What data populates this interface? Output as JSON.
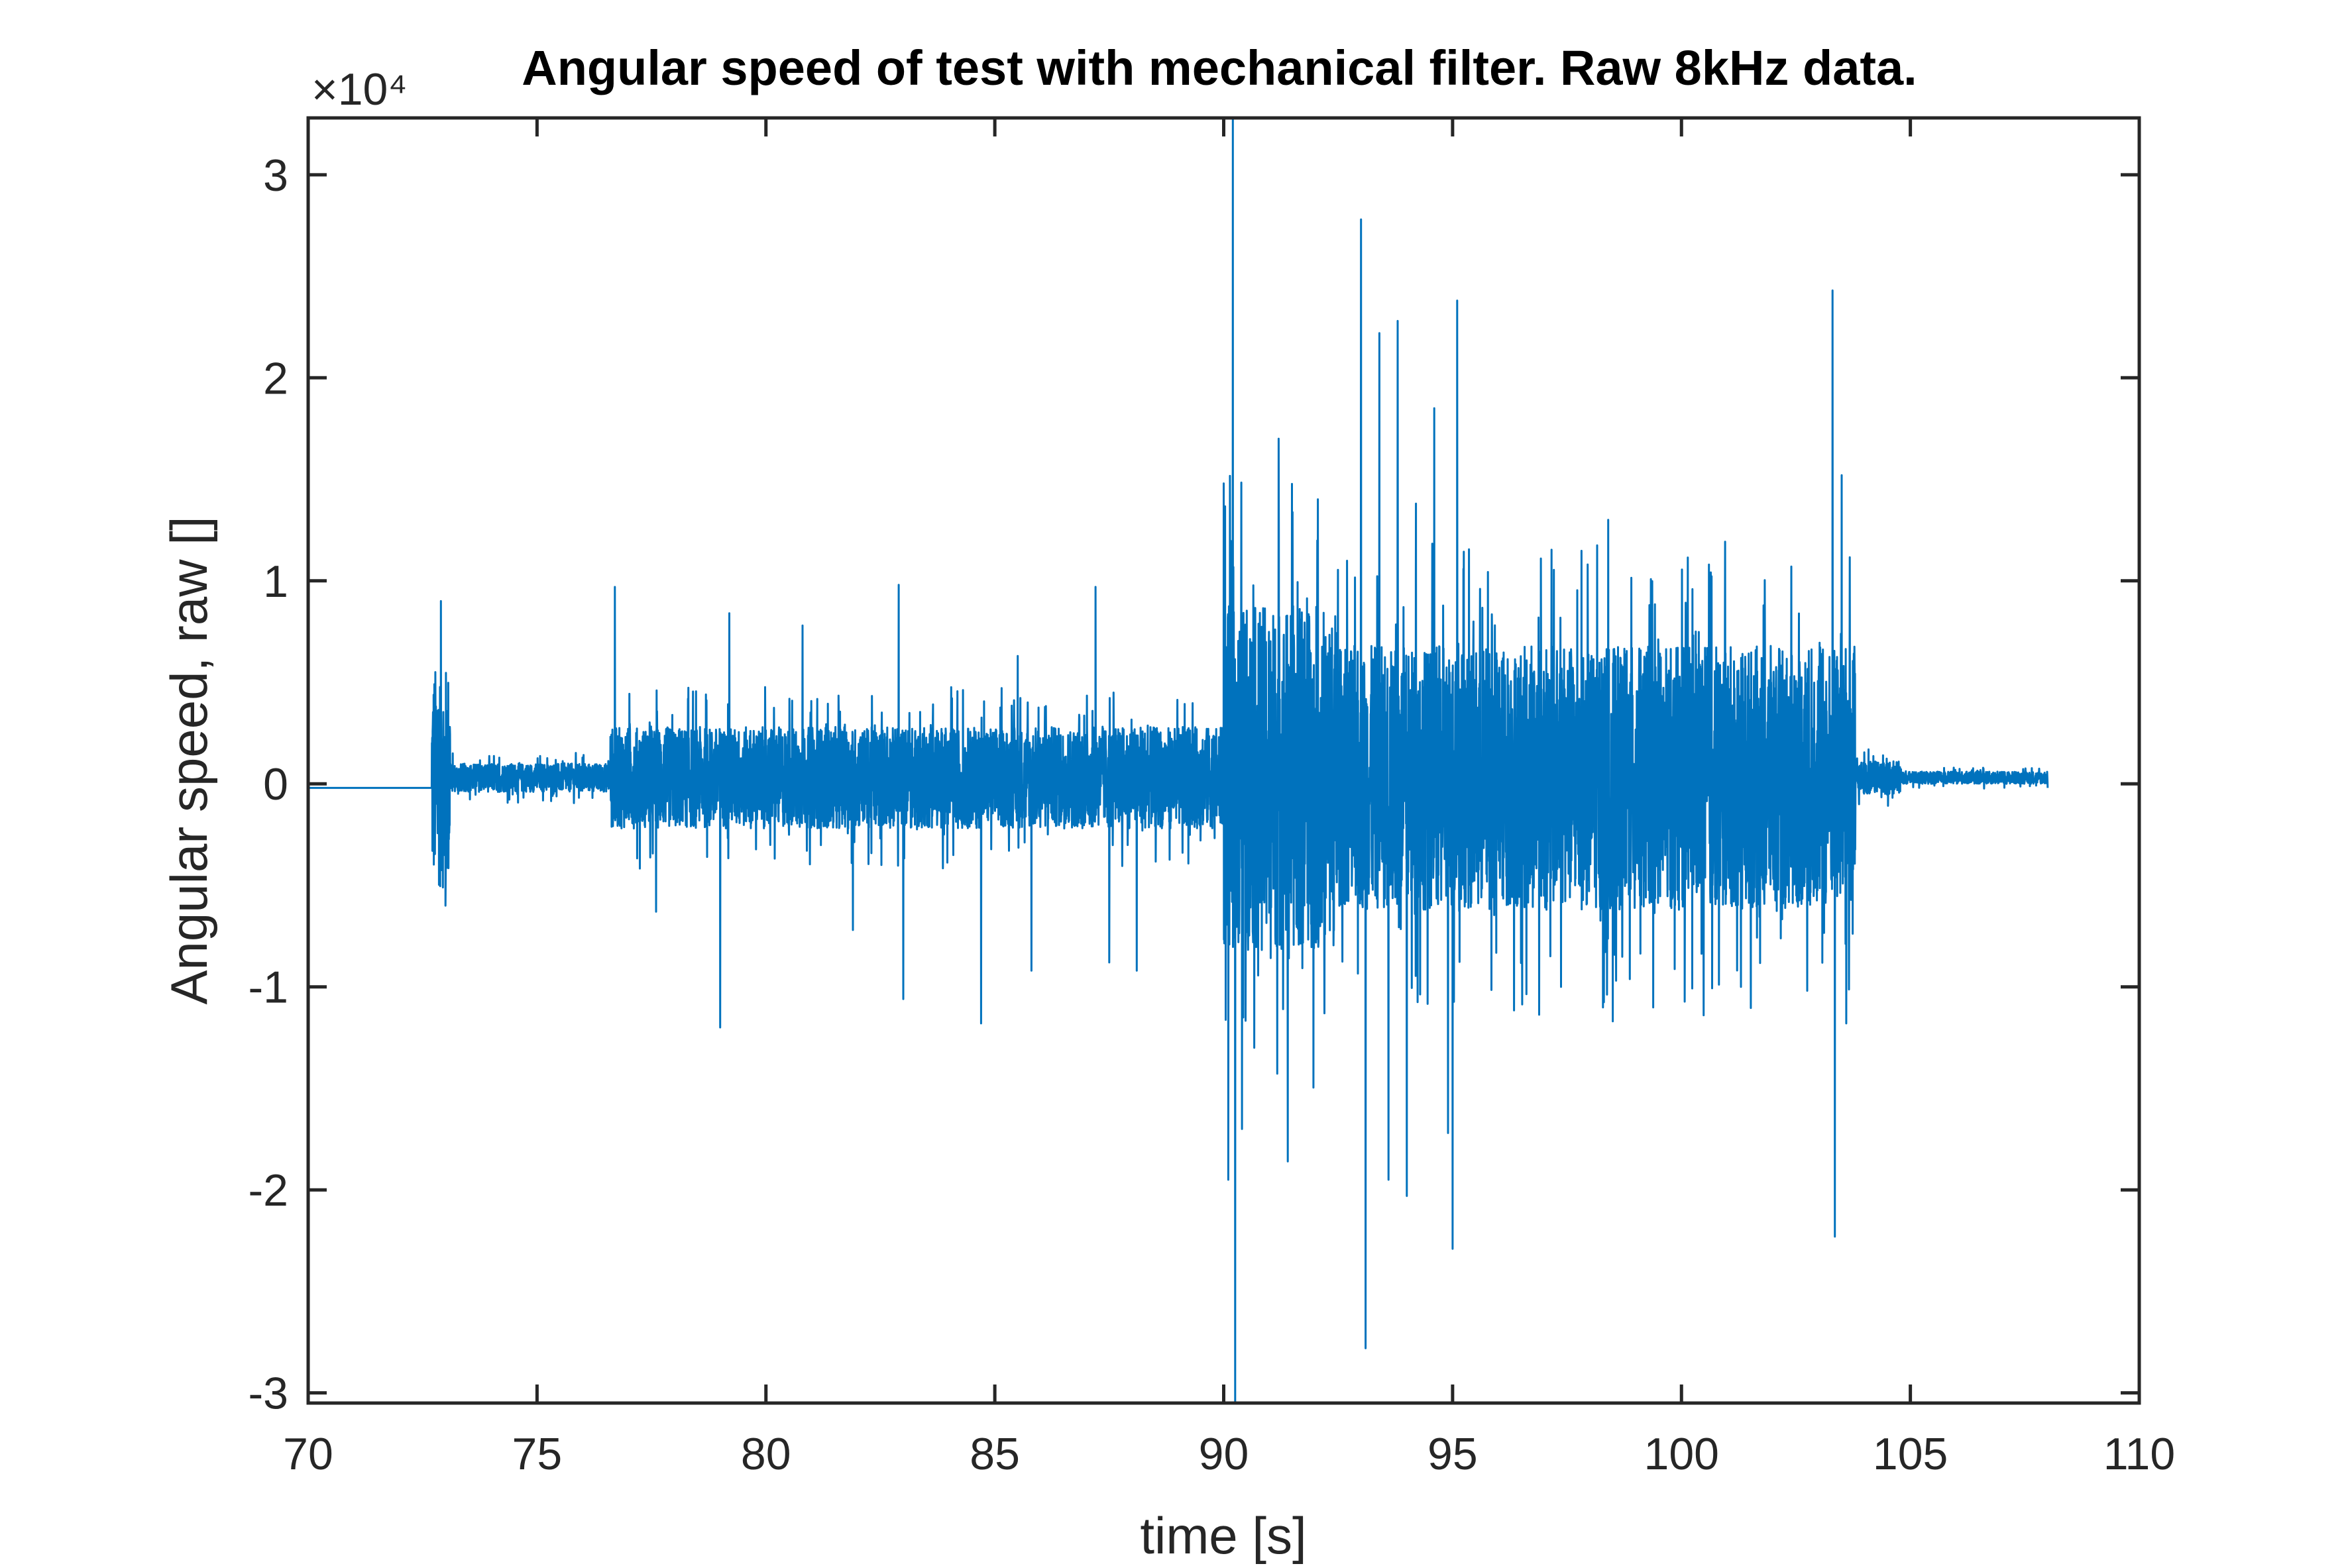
{
  "chart_data": {
    "type": "line",
    "title": "Angular speed of test with mechanical filter. Raw 8kHz data.",
    "xlabel": "time [s]",
    "ylabel": "Angular speed, raw []",
    "y_exponent_label": "×10⁴",
    "y_exponent": 4,
    "xlim": [
      70,
      110
    ],
    "ylim": [
      -3.05,
      3.28
    ],
    "x_ticks": [
      70,
      75,
      80,
      85,
      90,
      95,
      100,
      105,
      110
    ],
    "x_tick_labels": [
      "70",
      "75",
      "80",
      "85",
      "90",
      "95",
      "100",
      "105",
      "110"
    ],
    "y_ticks": [
      3,
      2,
      1,
      0,
      -1,
      -2,
      -3
    ],
    "y_tick_labels": [
      "3",
      "2",
      "1",
      "0",
      "-1",
      "-2",
      "-3"
    ],
    "grid": false,
    "box": true,
    "series": [
      {
        "color": "#0072BD",
        "data_range_x": [
          70,
          108
        ],
        "baseline_y": -0.02,
        "peaks": [
          {
            "x": 72.9,
            "y": 0.9
          },
          {
            "x": 73.0,
            "y": -0.6
          },
          {
            "x": 76.7,
            "y": 0.97
          },
          {
            "x": 77.6,
            "y": -0.63
          },
          {
            "x": 79.0,
            "y": -1.2
          },
          {
            "x": 79.2,
            "y": 0.84
          },
          {
            "x": 80.8,
            "y": 0.78
          },
          {
            "x": 81.9,
            "y": -0.72
          },
          {
            "x": 82.9,
            "y": 0.98
          },
          {
            "x": 83.0,
            "y": -1.06
          },
          {
            "x": 84.7,
            "y": -1.18
          },
          {
            "x": 85.5,
            "y": 0.63
          },
          {
            "x": 85.8,
            "y": -0.92
          },
          {
            "x": 87.2,
            "y": 0.97
          },
          {
            "x": 87.5,
            "y": -0.88
          },
          {
            "x": 88.1,
            "y": -0.92
          },
          {
            "x": 90.0,
            "y": 1.48
          },
          {
            "x": 90.1,
            "y": -1.95
          },
          {
            "x": 90.2,
            "y": 3.28
          },
          {
            "x": 90.25,
            "y": -3.05
          },
          {
            "x": 90.4,
            "y": -1.7
          },
          {
            "x": 91.2,
            "y": 1.7
          },
          {
            "x": 91.4,
            "y": -1.86
          },
          {
            "x": 92.2,
            "y": -1.13
          },
          {
            "x": 93.0,
            "y": 2.78
          },
          {
            "x": 93.1,
            "y": -2.78
          },
          {
            "x": 93.4,
            "y": 2.22
          },
          {
            "x": 93.6,
            "y": -1.95
          },
          {
            "x": 93.8,
            "y": 2.28
          },
          {
            "x": 94.0,
            "y": -2.03
          },
          {
            "x": 94.2,
            "y": 1.38
          },
          {
            "x": 94.6,
            "y": 1.85
          },
          {
            "x": 94.9,
            "y": -1.72
          },
          {
            "x": 95.1,
            "y": 2.38
          },
          {
            "x": 95.0,
            "y": -2.29
          },
          {
            "x": 95.6,
            "y": 0.96
          },
          {
            "x": 98.4,
            "y": 1.3
          },
          {
            "x": 98.5,
            "y": -1.17
          },
          {
            "x": 99.3,
            "y": 0.88
          },
          {
            "x": 100.6,
            "y": 1.08
          },
          {
            "x": 101.3,
            "y": -1.0
          },
          {
            "x": 102.4,
            "y": 1.07
          },
          {
            "x": 103.3,
            "y": 2.43
          },
          {
            "x": 103.35,
            "y": -2.23
          },
          {
            "x": 103.5,
            "y": 1.52
          },
          {
            "x": 103.6,
            "y": -1.18
          }
        ],
        "bursts": [
          {
            "x_start": 72.7,
            "x_end": 73.1,
            "amp": 0.55
          },
          {
            "x_start": 73.1,
            "x_end": 76.6,
            "amp": 0.07
          },
          {
            "x_start": 76.6,
            "x_end": 90.0,
            "amp": 0.25
          },
          {
            "x_start": 90.0,
            "x_end": 92.5,
            "amp": 0.85
          },
          {
            "x_start": 92.5,
            "x_end": 103.8,
            "amp": 0.65
          },
          {
            "x_start": 103.8,
            "x_end": 104.8,
            "amp": 0.08
          },
          {
            "x_start": 104.8,
            "x_end": 108.0,
            "amp": 0.03
          }
        ]
      }
    ]
  }
}
